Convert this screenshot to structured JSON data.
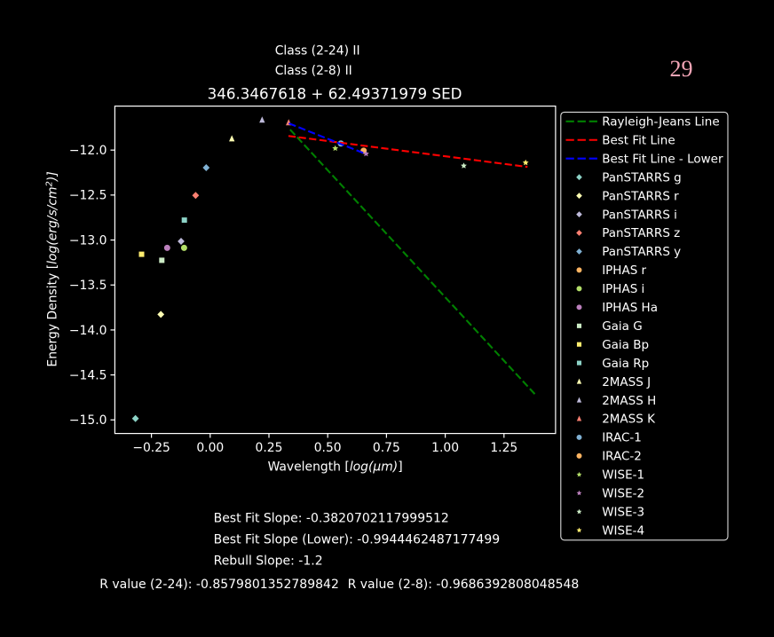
{
  "figure": {
    "background": "#000000",
    "page_number": "29",
    "page_number_color": "#f3a5b6"
  },
  "header": {
    "class_line_1": "Class (2-24) II",
    "class_line_2": "Class (2-8) II"
  },
  "chart_data": {
    "type": "scatter",
    "title": "346.3467618 + 62.49371979 SED",
    "xlabel": {
      "prefix": "Wavelength [",
      "math": "log(μm)",
      "suffix": "]"
    },
    "ylabel": {
      "prefix": "Energy Density [",
      "math": "log(erg/s/cm",
      "sup": "2",
      "suffix": ")]"
    },
    "xlim": [
      -0.4056,
      1.4694
    ],
    "ylim": [
      -15.151,
      -11.511
    ],
    "x_ticks": {
      "values": [
        -0.25,
        0.0,
        0.25,
        0.5,
        0.75,
        1.0,
        1.25
      ],
      "labels": [
        "−0.25",
        "0.00",
        "0.25",
        "0.50",
        "0.75",
        "1.00",
        "1.25"
      ]
    },
    "y_ticks": {
      "values": [
        -12.0,
        -12.5,
        -13.0,
        -13.5,
        -14.0,
        -14.5,
        -15.0
      ],
      "labels": [
        "−12.0",
        "−12.5",
        "−13.0",
        "−13.5",
        "−14.0",
        "−14.5",
        "−15.0"
      ]
    },
    "grid": false,
    "legend_position": "outside-right",
    "lines": [
      {
        "name": "Rayleigh-Jeans Line",
        "color": "#008000",
        "style": "dashed",
        "x": [
          0.34,
          1.382
        ],
        "y": [
          -11.772,
          -14.715
        ]
      },
      {
        "name": "Best Fit Line",
        "color": "#ff0000",
        "style": "dashed",
        "x": [
          0.333,
          1.35
        ],
        "y": [
          -11.843,
          -12.187
        ]
      },
      {
        "name": "Best Fit Line - Lower",
        "color": "#0000ff",
        "style": "dashed",
        "x": [
          0.335,
          0.664
        ],
        "y": [
          -11.703,
          -12.045
        ]
      }
    ],
    "series": [
      {
        "name": "PanSTARRS g",
        "marker": "diamond",
        "color": "#8dd3c7",
        "points": [
          [
            -0.318,
            -14.985
          ]
        ]
      },
      {
        "name": "PanSTARRS r",
        "marker": "diamond",
        "color": "#ffffb3",
        "points": [
          [
            -0.21,
            -13.827
          ]
        ]
      },
      {
        "name": "PanSTARRS i",
        "marker": "diamond",
        "color": "#bebada",
        "points": [
          [
            -0.124,
            -13.014
          ]
        ]
      },
      {
        "name": "PanSTARRS z",
        "marker": "diamond",
        "color": "#fb8072",
        "points": [
          [
            -0.062,
            -12.504
          ]
        ]
      },
      {
        "name": "PanSTARRS y",
        "marker": "diamond",
        "color": "#80b1d3",
        "points": [
          [
            -0.017,
            -12.196
          ]
        ]
      },
      {
        "name": "IPHAS r",
        "marker": "circle",
        "color": "#fdb462",
        "points": []
      },
      {
        "name": "IPHAS i",
        "marker": "circle",
        "color": "#b3de69",
        "points": [
          [
            -0.111,
            -13.087
          ]
        ]
      },
      {
        "name": "IPHAS Ha",
        "marker": "circle",
        "color": "#bc80bd",
        "points": [
          [
            -0.183,
            -13.087
          ]
        ]
      },
      {
        "name": "Gaia G",
        "marker": "square",
        "color": "#ccebc5",
        "points": [
          [
            -0.206,
            -13.225
          ]
        ]
      },
      {
        "name": "Gaia Bp",
        "marker": "square",
        "color": "#ffed6f",
        "points": [
          [
            -0.292,
            -13.158
          ]
        ]
      },
      {
        "name": "Gaia Rp",
        "marker": "square",
        "color": "#8dd3c7",
        "points": [
          [
            -0.11,
            -12.779
          ]
        ]
      },
      {
        "name": "2MASS J",
        "marker": "triangle",
        "color": "#ffffb3",
        "points": [
          [
            0.092,
            -11.875
          ]
        ]
      },
      {
        "name": "2MASS H",
        "marker": "triangle",
        "color": "#bebada",
        "points": [
          [
            0.221,
            -11.666
          ]
        ]
      },
      {
        "name": "2MASS K",
        "marker": "triangle",
        "color": "#fb8072",
        "points": [
          [
            0.334,
            -11.695
          ]
        ]
      },
      {
        "name": "IRAC-1",
        "marker": "circle",
        "color": "#80b1d3",
        "points": [
          [
            0.556,
            -11.927
          ]
        ]
      },
      {
        "name": "IRAC-2",
        "marker": "circle",
        "color": "#fdb462",
        "points": [
          [
            0.653,
            -12.007
          ]
        ]
      },
      {
        "name": "WISE-1",
        "marker": "star",
        "color": "#b3de69",
        "points": [
          [
            0.532,
            -11.981
          ]
        ]
      },
      {
        "name": "WISE-2",
        "marker": "star",
        "color": "#bc80bd",
        "points": [
          [
            0.663,
            -12.041
          ]
        ]
      },
      {
        "name": "WISE-3",
        "marker": "star",
        "color": "#ccebc5",
        "points": [
          [
            1.079,
            -12.175
          ]
        ]
      },
      {
        "name": "WISE-4",
        "marker": "star",
        "color": "#ffed6f",
        "points": [
          [
            1.342,
            -12.14
          ]
        ]
      }
    ]
  },
  "stats": {
    "best_fit_slope": "Best Fit Slope: -0.3820702117999512",
    "best_fit_slope_lower": "Best Fit Slope (Lower): -0.9944462487177499",
    "rebull_slope": "Rebull Slope: -1.2",
    "r_value_2_24": "R value (2-24): -0.8579801352789842",
    "r_value_2_8": "R value (2-8): -0.9686392808048548"
  }
}
